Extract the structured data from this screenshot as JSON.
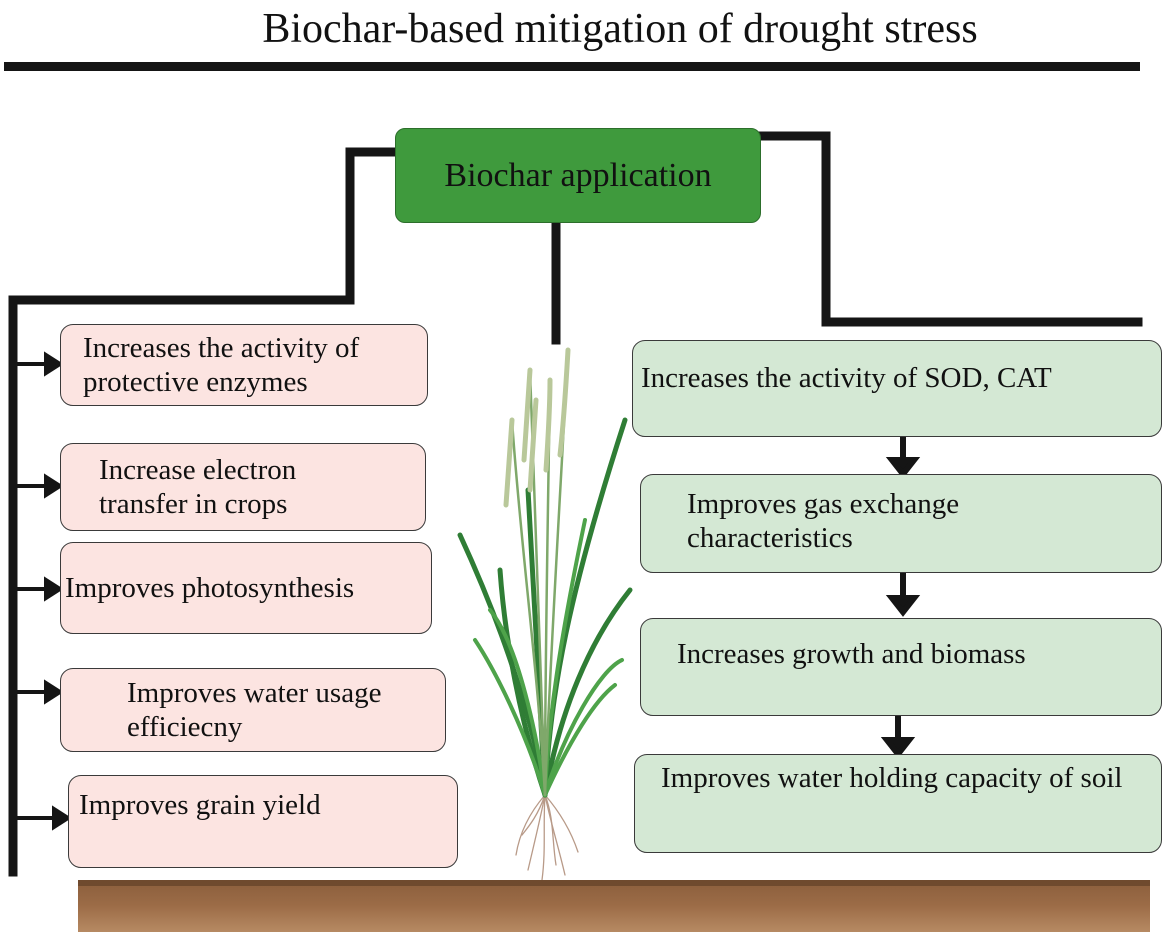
{
  "title": "Biochar-based mitigation of drought stress",
  "root": {
    "label": "Biochar application"
  },
  "left_effects": [
    {
      "label": "Increases the activity of protective enzymes"
    },
    {
      "label": "Increase electron transfer in crops"
    },
    {
      "label": "Improves photosynthesis"
    },
    {
      "label": "Improves water usage efficiecny"
    },
    {
      "label": "Improves grain yield"
    }
  ],
  "right_chain": [
    {
      "label": "Increases the activity of SOD, CAT"
    },
    {
      "label": "Improves gas exchange characteristics"
    },
    {
      "label": "Increases growth and biomass"
    },
    {
      "label": "Improves water holding capacity of soil"
    }
  ],
  "colors": {
    "root_fill": "#3f9a3d",
    "left_fill": "#fce4e1",
    "right_fill": "#d4e8d4",
    "line": "#151515",
    "soil_top": "#8b5e3c",
    "soil_bottom": "#b68a63"
  },
  "icons": [
    "rice-plant-illustration",
    "soil-strip"
  ]
}
